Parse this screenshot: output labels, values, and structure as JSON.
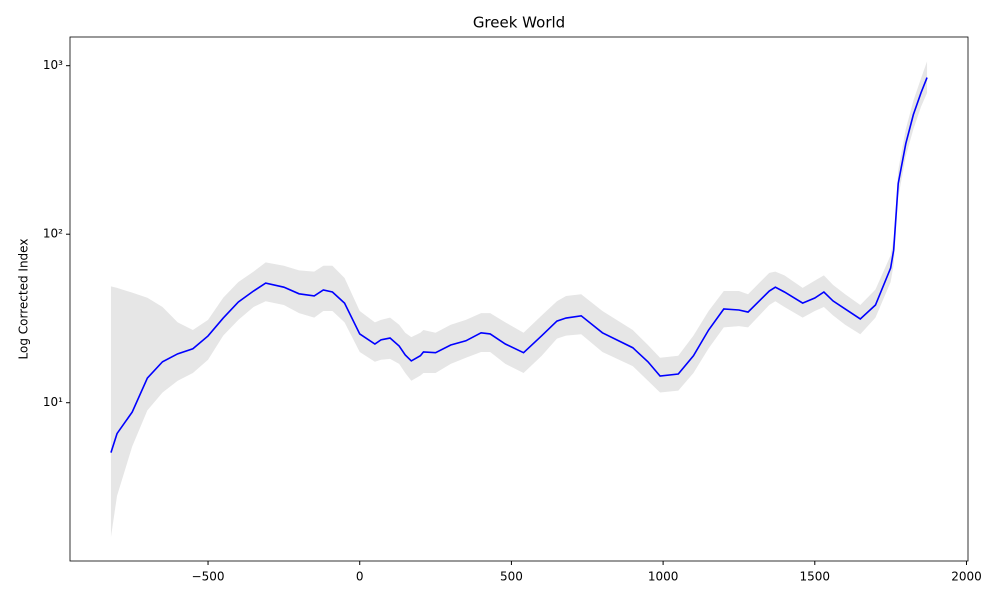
{
  "chart_data": {
    "type": "line",
    "title": "Greek World",
    "y_label": "Log Corrected Index",
    "y_log": true,
    "x": [
      -820,
      -800,
      -750,
      -700,
      -650,
      -600,
      -550,
      -500,
      -450,
      -400,
      -350,
      -310,
      -250,
      -200,
      -150,
      -120,
      -90,
      -50,
      0,
      50,
      70,
      100,
      130,
      150,
      170,
      200,
      210,
      250,
      300,
      350,
      400,
      430,
      480,
      540,
      600,
      650,
      680,
      730,
      800,
      900,
      950,
      990,
      1050,
      1100,
      1150,
      1200,
      1250,
      1280,
      1350,
      1370,
      1400,
      1460,
      1500,
      1530,
      1560,
      1600,
      1650,
      1700,
      1750,
      1760,
      1775,
      1800,
      1825,
      1850,
      1870
    ],
    "series": [
      {
        "color": "#0000ff",
        "values": [
          5.06,
          6.56,
          8.8,
          14.0,
          17.5,
          19.5,
          20.9,
          24.9,
          31.8,
          39.6,
          46,
          51.3,
          48.5,
          44.3,
          43,
          46.7,
          45.4,
          39,
          25.6,
          22.3,
          23.6,
          24.2,
          21.7,
          19.2,
          17.7,
          19.0,
          20,
          19.8,
          22,
          23.3,
          26,
          25.6,
          22.3,
          19.8,
          25,
          30.5,
          31.8,
          32.8,
          26,
          21.2,
          17.5,
          14.4,
          14.8,
          19,
          27,
          36,
          35.5,
          34.5,
          46,
          48.5,
          45.4,
          39,
          41.8,
          45.4,
          40.2,
          36,
          31.4,
          38,
          63,
          80.5,
          200,
          345,
          513,
          690,
          850
        ]
      }
    ],
    "band": {
      "color": "#e6e6e6",
      "upper": [
        49,
        48,
        45,
        42,
        37,
        30,
        27,
        31,
        42,
        52,
        60,
        68,
        65,
        61,
        60,
        65,
        65,
        55,
        35,
        30,
        31,
        32,
        29,
        26,
        24.5,
        26,
        27,
        26,
        29,
        31,
        34,
        34,
        30,
        26,
        33,
        40,
        43,
        44,
        35,
        27,
        22,
        18.5,
        19,
        25,
        35,
        46,
        46,
        44,
        59,
        60,
        57,
        48,
        53,
        57,
        50,
        44,
        38,
        47,
        75,
        95,
        240,
        420,
        620,
        840,
        1060
      ],
      "lower": [
        1.6,
        2.8,
        5.5,
        9,
        11.5,
        13.5,
        15,
        18,
        25,
        31,
        37,
        40,
        38,
        34,
        32,
        35,
        35,
        30,
        20,
        17.5,
        18,
        18.2,
        17,
        15,
        13.5,
        14.5,
        15,
        15,
        17,
        18.5,
        20,
        20,
        17,
        15,
        19,
        24,
        25,
        25.5,
        20,
        16.5,
        13.5,
        11.5,
        11.8,
        15,
        21,
        28,
        28.5,
        28,
        38,
        40,
        37,
        32,
        35,
        37,
        33,
        29,
        25.5,
        32,
        52,
        66,
        165,
        290,
        420,
        570,
        690
      ]
    },
    "xlim": [
      -955,
      2005
    ],
    "ylim": [
      1.15,
      1480
    ],
    "xticks": [
      {
        "value": -500,
        "label": "−500"
      },
      0,
      500,
      1000,
      1500,
      2000
    ],
    "yticks": [
      {
        "value": 10,
        "label": "10¹"
      },
      {
        "value": 100,
        "label": "10²"
      },
      {
        "value": 1000,
        "label": "10³"
      }
    ]
  }
}
